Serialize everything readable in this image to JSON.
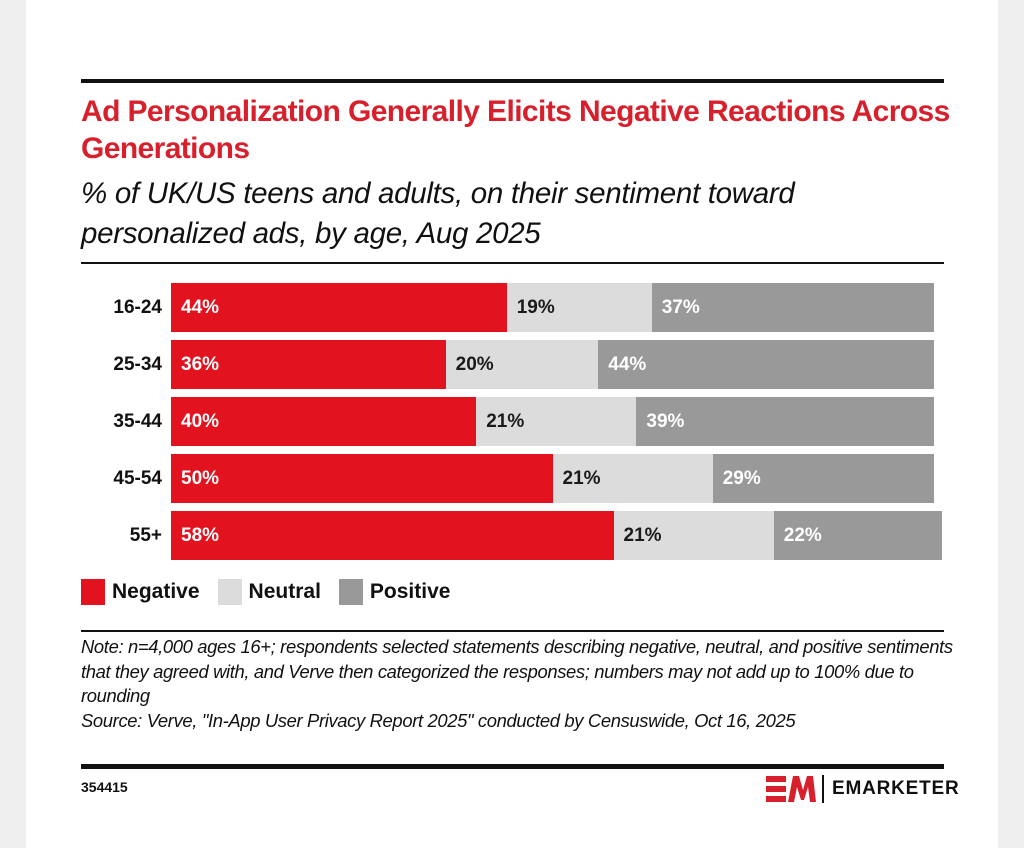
{
  "header": {
    "title": "Ad Personalization Generally Elicits Negative Reactions Across Generations",
    "subtitle": "% of UK/US teens and adults, on their sentiment toward personalized ads, by age, Aug 2025"
  },
  "colors": {
    "accent": "#d7202c",
    "negative": "#e2121f",
    "neutral": "#dcdcdc",
    "positive": "#999999",
    "label_dark": "#1a1a1a",
    "label_light": "#ffffff"
  },
  "chart_data": {
    "type": "bar",
    "orientation": "horizontal",
    "stacked": true,
    "title": "Ad Personalization Generally Elicits Negative Reactions Across Generations",
    "subtitle": "% of UK/US teens and adults, on their sentiment toward personalized ads, by age, Aug 2025",
    "xlabel": "",
    "ylabel": "",
    "categories": [
      "16-24",
      "25-34",
      "35-44",
      "45-54",
      "55+"
    ],
    "series": [
      {
        "name": "Negative",
        "values": [
          44,
          36,
          40,
          50,
          58
        ],
        "labels": [
          "44%",
          "36%",
          "40%",
          "50%",
          "58%"
        ]
      },
      {
        "name": "Neutral",
        "values": [
          19,
          20,
          21,
          21,
          21
        ],
        "labels": [
          "19%",
          "20%",
          "21%",
          "21%",
          "21%"
        ]
      },
      {
        "name": "Positive",
        "values": [
          37,
          44,
          39,
          29,
          22
        ],
        "labels": [
          "37%",
          "44%",
          "39%",
          "29%",
          "22%"
        ]
      }
    ],
    "xlim": [
      0,
      100
    ],
    "grid": false,
    "legend_position": "bottom-left",
    "legend": [
      "Negative",
      "Neutral",
      "Positive"
    ]
  },
  "footer": {
    "note": "Note: n=4,000 ages 16+; respondents selected statements describing negative, neutral, and positive sentiments that they agreed with, and Verve then categorized the responses; numbers may not add up to 100% due to rounding",
    "source": "Source: Verve, \"In-App User Privacy Report 2025\" conducted by Censuswide, Oct 16, 2025",
    "chart_id": "354415",
    "brand": "EMARKETER"
  }
}
